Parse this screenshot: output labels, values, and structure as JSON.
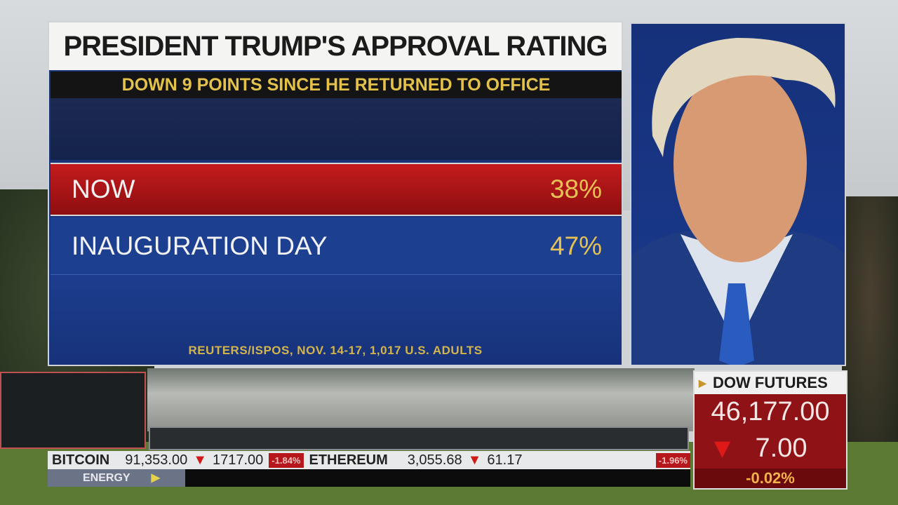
{
  "graphic": {
    "title": "PRESIDENT TRUMP'S APPROVAL RATING",
    "subtitle": "DOWN 9 POINTS SINCE HE RETURNED TO OFFICE",
    "rows": [
      {
        "label": "NOW",
        "value": "38%"
      },
      {
        "label": "INAUGURATION DAY",
        "value": "47%"
      }
    ],
    "source": "REUTERS/ISPOS, NOV. 14-17,  1,017 U.S. ADULTS",
    "colors": {
      "now": "#b8181a",
      "inauguration": "#1d3f8f",
      "accent": "#e4c24a"
    }
  },
  "ticker": [
    {
      "name": "BITCOIN",
      "price": "91,353.00",
      "change": "1717.00",
      "pct": "-1.84%"
    },
    {
      "name": "ETHEREUM",
      "price": "3,055.68",
      "change": "61.17",
      "pct": "-1.96%"
    }
  ],
  "sector": {
    "label": "ENERGY"
  },
  "dow": {
    "label": "DOW FUTURES",
    "value": "46,177.00",
    "change": "7.00",
    "pct": "-0.02%"
  }
}
